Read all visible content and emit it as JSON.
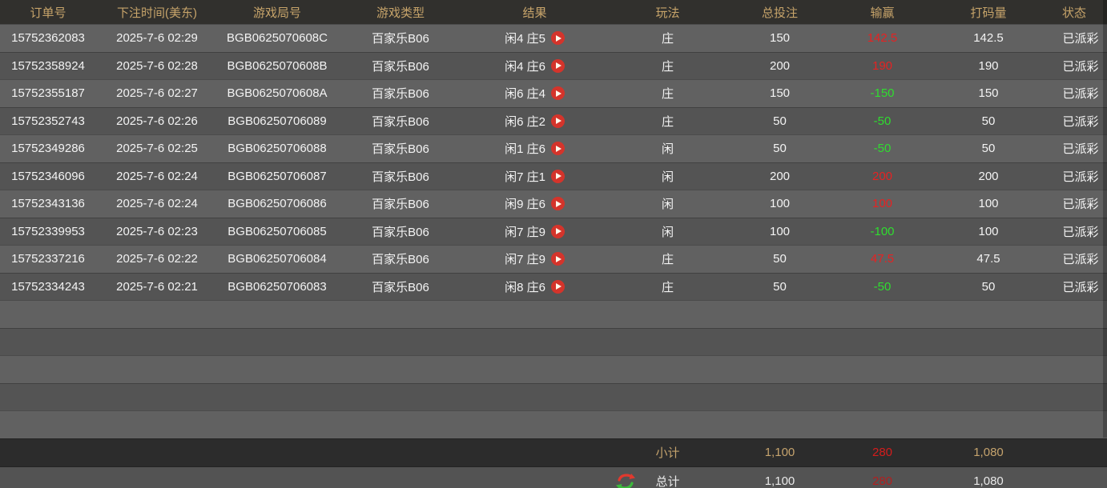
{
  "table": {
    "columns": [
      {
        "label": "订单号"
      },
      {
        "label": "下注时间(美东)"
      },
      {
        "label": "游戏局号"
      },
      {
        "label": "游戏类型"
      },
      {
        "label": "结果"
      },
      {
        "label": "玩法"
      },
      {
        "label": "总投注"
      },
      {
        "label": "输赢"
      },
      {
        "label": "打码量"
      },
      {
        "label": "状态"
      }
    ],
    "rows": [
      {
        "order_id": "15752362083",
        "bet_time": "2025-7-6 02:29",
        "round_id": "BGB0625070608C",
        "game_type": "百家乐B06",
        "result": "闲4 庄5",
        "play": "庄",
        "total_bet": "150",
        "win_loss": "142.5",
        "win_loss_type": "win",
        "turnover": "142.5",
        "status": "已派彩"
      },
      {
        "order_id": "15752358924",
        "bet_time": "2025-7-6 02:28",
        "round_id": "BGB0625070608B",
        "game_type": "百家乐B06",
        "result": "闲4 庄6",
        "play": "庄",
        "total_bet": "200",
        "win_loss": "190",
        "win_loss_type": "win",
        "turnover": "190",
        "status": "已派彩"
      },
      {
        "order_id": "15752355187",
        "bet_time": "2025-7-6 02:27",
        "round_id": "BGB0625070608A",
        "game_type": "百家乐B06",
        "result": "闲6 庄4",
        "play": "庄",
        "total_bet": "150",
        "win_loss": "-150",
        "win_loss_type": "loss",
        "turnover": "150",
        "status": "已派彩"
      },
      {
        "order_id": "15752352743",
        "bet_time": "2025-7-6 02:26",
        "round_id": "BGB06250706089",
        "game_type": "百家乐B06",
        "result": "闲6 庄2",
        "play": "庄",
        "total_bet": "50",
        "win_loss": "-50",
        "win_loss_type": "loss",
        "turnover": "50",
        "status": "已派彩"
      },
      {
        "order_id": "15752349286",
        "bet_time": "2025-7-6 02:25",
        "round_id": "BGB06250706088",
        "game_type": "百家乐B06",
        "result": "闲1 庄6",
        "play": "闲",
        "total_bet": "50",
        "win_loss": "-50",
        "win_loss_type": "loss",
        "turnover": "50",
        "status": "已派彩"
      },
      {
        "order_id": "15752346096",
        "bet_time": "2025-7-6 02:24",
        "round_id": "BGB06250706087",
        "game_type": "百家乐B06",
        "result": "闲7 庄1",
        "play": "闲",
        "total_bet": "200",
        "win_loss": "200",
        "win_loss_type": "win",
        "turnover": "200",
        "status": "已派彩"
      },
      {
        "order_id": "15752343136",
        "bet_time": "2025-7-6 02:24",
        "round_id": "BGB06250706086",
        "game_type": "百家乐B06",
        "result": "闲9 庄6",
        "play": "闲",
        "total_bet": "100",
        "win_loss": "100",
        "win_loss_type": "win",
        "turnover": "100",
        "status": "已派彩"
      },
      {
        "order_id": "15752339953",
        "bet_time": "2025-7-6 02:23",
        "round_id": "BGB06250706085",
        "game_type": "百家乐B06",
        "result": "闲7 庄9",
        "play": "闲",
        "total_bet": "100",
        "win_loss": "-100",
        "win_loss_type": "loss",
        "turnover": "100",
        "status": "已派彩"
      },
      {
        "order_id": "15752337216",
        "bet_time": "2025-7-6 02:22",
        "round_id": "BGB06250706084",
        "game_type": "百家乐B06",
        "result": "闲7 庄9",
        "play": "庄",
        "total_bet": "50",
        "win_loss": "47.5",
        "win_loss_type": "win",
        "turnover": "47.5",
        "status": "已派彩"
      },
      {
        "order_id": "15752334243",
        "bet_time": "2025-7-6 02:21",
        "round_id": "BGB06250706083",
        "game_type": "百家乐B06",
        "result": "闲8 庄6",
        "play": "庄",
        "total_bet": "50",
        "win_loss": "-50",
        "win_loss_type": "loss",
        "turnover": "50",
        "status": "已派彩"
      }
    ],
    "empty_row_count": 5
  },
  "footer": {
    "subtotal": {
      "label": "小计",
      "total_bet": "1,100",
      "win_loss": "280",
      "turnover": "1,080"
    },
    "total": {
      "label": "总计",
      "total_bet": "1,100",
      "win_loss": "280",
      "turnover": "1,080"
    }
  },
  "icons": {
    "play": "play-icon",
    "refresh": "refresh-icon"
  },
  "colors": {
    "header_text": "#c7a46a",
    "row_light": "#616161",
    "row_dark": "#545454",
    "win_red": "#e62222",
    "loss_green": "#2fdd2f",
    "subtotal_bg": "#2c2c2c",
    "subtotal_gold": "#c5a36d",
    "subtotal_red": "#d51c1c",
    "total_bg": "#535353",
    "total_red": "#b22020",
    "play_icon_red": "#d4342b",
    "refresh_red": "#e0392e",
    "refresh_green": "#3cb93c"
  }
}
